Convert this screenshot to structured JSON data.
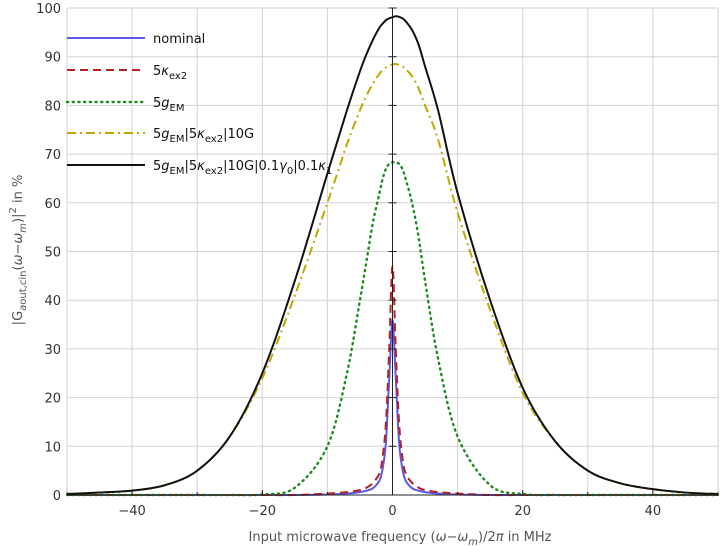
{
  "chart_data": {
    "type": "line",
    "title": "",
    "xlabel_parts": [
      "Input microwave frequency (",
      "ω",
      "−",
      "ω",
      "m",
      ")/2",
      "π",
      " in MHz"
    ],
    "ylabel_parts": [
      "|G",
      "a",
      "out",
      ",",
      "c",
      "in",
      "(",
      "ω",
      "−",
      "ω",
      "m",
      ")|",
      "2",
      " in %"
    ],
    "xlim": [
      -50,
      50
    ],
    "ylim": [
      0,
      100
    ],
    "xticks": [
      -40,
      -20,
      0,
      20,
      40
    ],
    "xtick_labels": [
      "−40",
      "−20",
      "0",
      "20",
      "40"
    ],
    "yticks": [
      0,
      10,
      20,
      30,
      40,
      50,
      60,
      70,
      80,
      90,
      100
    ],
    "ytick_labels": [
      "0",
      "10",
      "20",
      "30",
      "40",
      "50",
      "60",
      "70",
      "80",
      "90",
      "100"
    ],
    "grid": true,
    "legend_position": "top-left",
    "x": [
      -50,
      -45,
      -40,
      -35,
      -30,
      -25,
      -20,
      -15,
      -10,
      -7,
      -5,
      -4,
      -3,
      -2,
      -1.5,
      -1,
      -0.5,
      0,
      0.5,
      1,
      1.5,
      2,
      3,
      4,
      5,
      7,
      10,
      15,
      20,
      25,
      30,
      35,
      40,
      45,
      50
    ],
    "series": [
      {
        "color": "#5a5ae6",
        "dash": "solid",
        "legend": [
          {
            "t": "nominal"
          }
        ],
        "values": [
          0,
          0,
          0,
          0,
          0,
          0,
          0,
          0,
          0.1,
          0.3,
          0.6,
          0.9,
          1.4,
          3.0,
          5.5,
          11,
          24,
          36,
          24,
          11,
          5.5,
          3.0,
          1.4,
          0.9,
          0.6,
          0.3,
          0.1,
          0,
          0,
          0,
          0,
          0,
          0,
          0,
          0
        ]
      },
      {
        "color": "#b22222",
        "dash": "dashed",
        "legend": [
          {
            "t": "5"
          },
          {
            "t": "κ",
            "i": true
          },
          {
            "t": "ex2",
            "sub": true
          }
        ],
        "values": [
          0,
          0,
          0,
          0,
          0,
          0,
          0,
          0,
          0.3,
          0.6,
          1.0,
          1.5,
          2.5,
          4.5,
          8,
          15,
          30,
          47,
          30,
          15,
          8,
          4.5,
          2.5,
          1.5,
          1.0,
          0.6,
          0.3,
          0,
          0,
          0,
          0,
          0,
          0,
          0,
          0
        ]
      },
      {
        "color": "#1e8c1e",
        "dash": "dotted",
        "legend": [
          {
            "t": "5"
          },
          {
            "t": "g",
            "i": true
          },
          {
            "t": "EM",
            "sub": true
          }
        ],
        "values": [
          0,
          0,
          0,
          0,
          0,
          0,
          0.1,
          1.5,
          10,
          25,
          40,
          48,
          56,
          62,
          65,
          67,
          68,
          68.3,
          68.3,
          68,
          67,
          65,
          60,
          53,
          44,
          28,
          12,
          2,
          0.2,
          0,
          0,
          0,
          0,
          0,
          0
        ]
      },
      {
        "color": "#c0a800",
        "dash": "dashdot",
        "legend": [
          {
            "t": "5"
          },
          {
            "t": "g",
            "i": true
          },
          {
            "t": "EM",
            "sub": true
          },
          {
            "t": "|5"
          },
          {
            "t": "κ",
            "i": true
          },
          {
            "t": "ex2",
            "sub": true
          },
          {
            "t": "|10G"
          }
        ],
        "values": [
          0.2,
          0.5,
          0.9,
          2.0,
          5.0,
          12,
          24,
          41,
          60,
          72,
          79,
          82,
          84.5,
          86.5,
          87.2,
          87.8,
          88.2,
          88.4,
          88.5,
          88.3,
          88.0,
          87.5,
          86,
          83.5,
          80,
          73,
          58,
          38,
          21,
          11,
          5,
          2.4,
          1.2,
          0.5,
          0.2
        ]
      },
      {
        "color": "#111111",
        "dash": "solid",
        "legend": [
          {
            "t": "5"
          },
          {
            "t": "g",
            "i": true
          },
          {
            "t": "EM",
            "sub": true
          },
          {
            "t": "|5"
          },
          {
            "t": "κ",
            "i": true
          },
          {
            "t": "ex2",
            "sub": true
          },
          {
            "t": "|10G|0.1"
          },
          {
            "t": "γ",
            "i": true
          },
          {
            "t": "0",
            "sub": true
          },
          {
            "t": "|0.1"
          },
          {
            "t": "κ",
            "i": true
          },
          {
            "t": "1",
            "sub": true
          }
        ],
        "values": [
          0.2,
          0.5,
          0.9,
          2.0,
          5.0,
          12,
          25,
          44,
          66,
          79,
          87,
          90.5,
          93.5,
          96,
          96.8,
          97.5,
          97.9,
          98.1,
          98.3,
          98.2,
          97.9,
          97.3,
          95.5,
          92.5,
          88,
          79,
          62,
          40,
          22,
          11,
          5,
          2.4,
          1.2,
          0.5,
          0.2
        ]
      }
    ]
  }
}
